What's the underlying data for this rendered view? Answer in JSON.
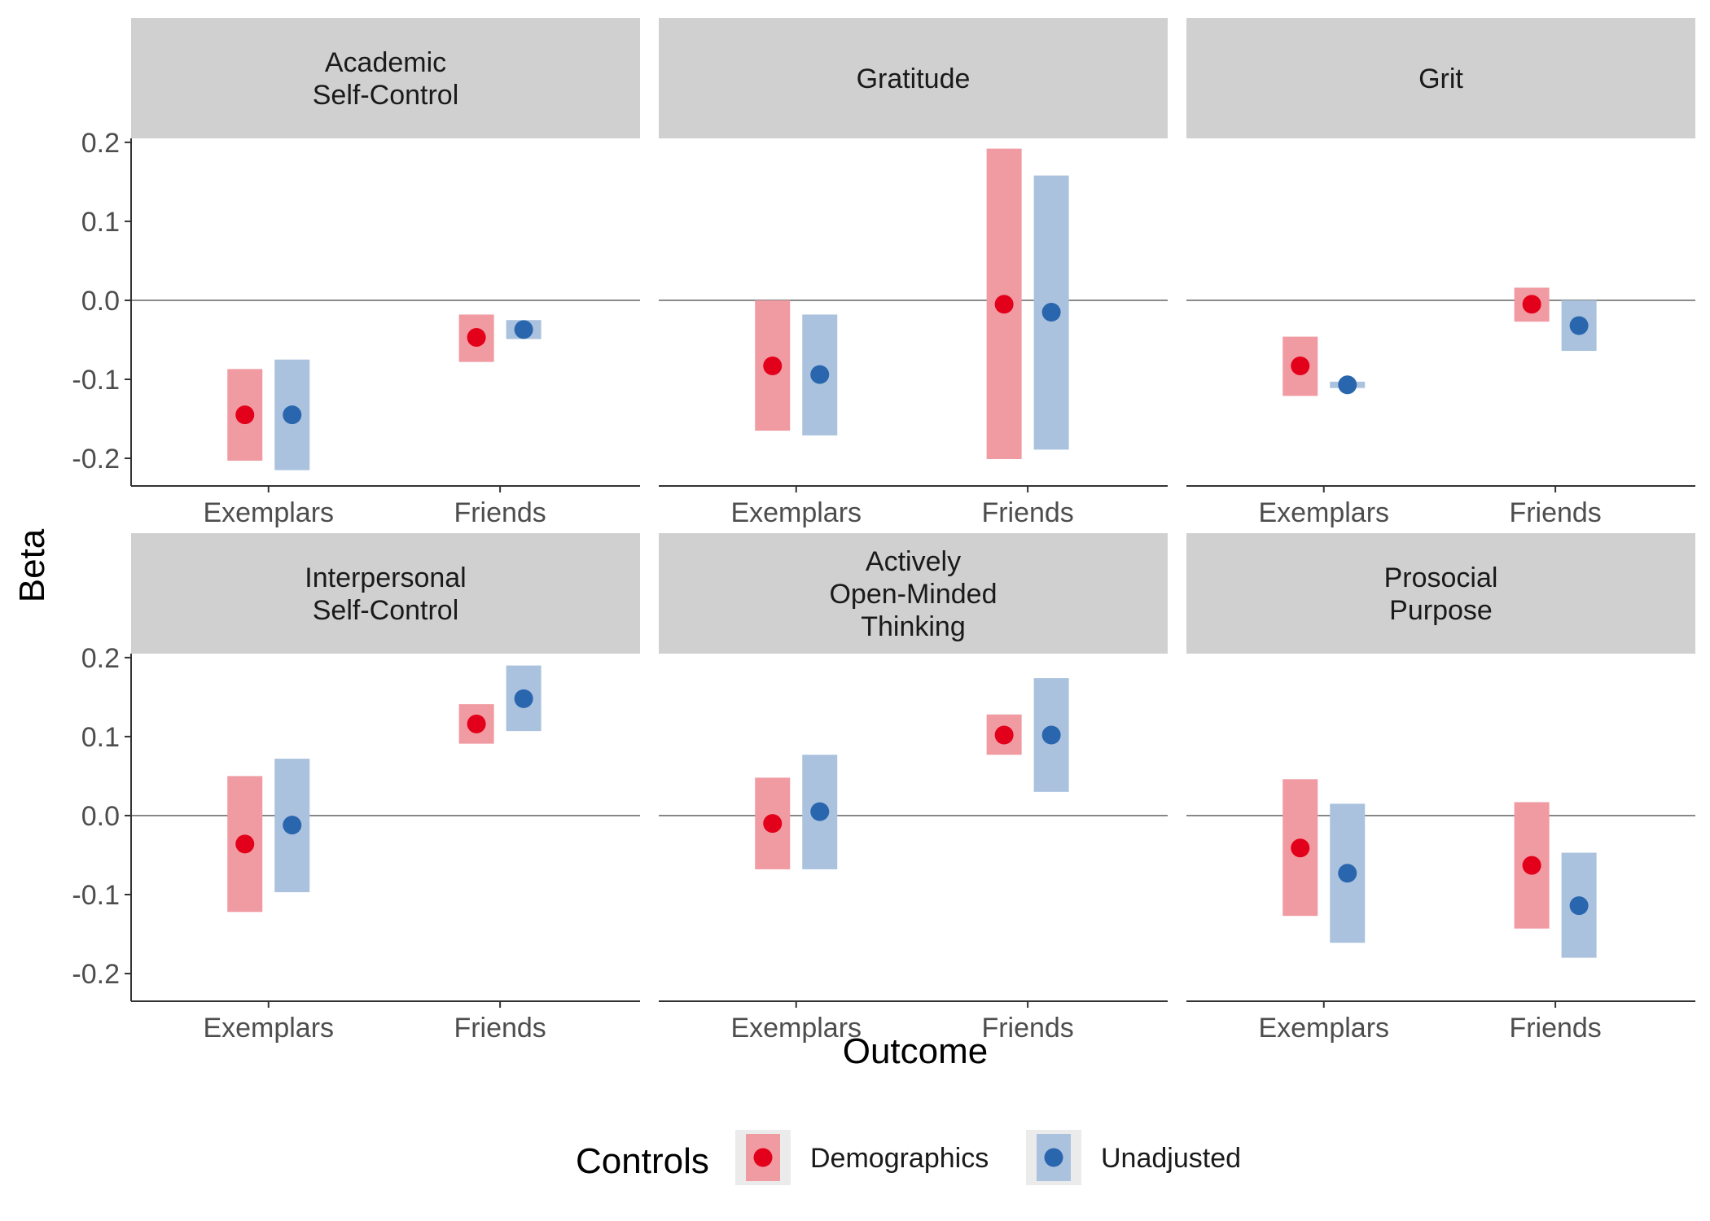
{
  "chart_data": {
    "type": "pointrange",
    "facet_layout": "3 columns x 2 rows",
    "xlabel": "Outcome",
    "ylabel": "Beta",
    "ylim": [
      -0.235,
      0.205
    ],
    "yticks": [
      -0.2,
      -0.1,
      0.0,
      0.1,
      0.2
    ],
    "ytick_labels": [
      "-0.2",
      "-0.1",
      "0.0",
      "0.1",
      "0.2"
    ],
    "reference_line_y": 0,
    "categories": [
      "Exemplars",
      "Friends"
    ],
    "legend": {
      "title": "Controls",
      "position": "bottom",
      "items": [
        {
          "name": "Demographics",
          "point_color": "#e3001b",
          "band_color": "#f09aa2"
        },
        {
          "name": "Unadjusted",
          "point_color": "#2a66ae",
          "band_color": "#aac2de"
        }
      ]
    },
    "series_names": [
      "Demographics",
      "Unadjusted"
    ],
    "panels": [
      {
        "title_lines": [
          "Academic",
          "Self-Control"
        ],
        "series": [
          {
            "name": "Demographics",
            "estimate": [
              -0.145,
              -0.047
            ],
            "low": [
              -0.203,
              -0.078
            ],
            "high": [
              -0.087,
              -0.018
            ]
          },
          {
            "name": "Unadjusted",
            "estimate": [
              -0.145,
              -0.037
            ],
            "low": [
              -0.215,
              -0.049
            ],
            "high": [
              -0.075,
              -0.025
            ]
          }
        ]
      },
      {
        "title_lines": [
          "Gratitude"
        ],
        "series": [
          {
            "name": "Demographics",
            "estimate": [
              -0.083,
              -0.005
            ],
            "low": [
              -0.165,
              -0.201
            ],
            "high": [
              0.0,
              0.192
            ]
          },
          {
            "name": "Unadjusted",
            "estimate": [
              -0.094,
              -0.015
            ],
            "low": [
              -0.171,
              -0.189
            ],
            "high": [
              -0.018,
              0.158
            ]
          }
        ]
      },
      {
        "title_lines": [
          "Grit"
        ],
        "series": [
          {
            "name": "Demographics",
            "estimate": [
              -0.083,
              -0.005
            ],
            "low": [
              -0.121,
              -0.027
            ],
            "high": [
              -0.046,
              0.016
            ]
          },
          {
            "name": "Unadjusted",
            "estimate": [
              -0.107,
              -0.032
            ],
            "low": [
              -0.111,
              -0.064
            ],
            "high": [
              -0.103,
              0.0
            ]
          }
        ]
      },
      {
        "title_lines": [
          "Interpersonal",
          "Self-Control"
        ],
        "series": [
          {
            "name": "Demographics",
            "estimate": [
              -0.036,
              0.116
            ],
            "low": [
              -0.122,
              0.091
            ],
            "high": [
              0.05,
              0.141
            ]
          },
          {
            "name": "Unadjusted",
            "estimate": [
              -0.012,
              0.148
            ],
            "low": [
              -0.097,
              0.107
            ],
            "high": [
              0.072,
              0.19
            ]
          }
        ]
      },
      {
        "title_lines": [
          "Actively",
          "Open-Minded",
          "Thinking"
        ],
        "series": [
          {
            "name": "Demographics",
            "estimate": [
              -0.01,
              0.102
            ],
            "low": [
              -0.068,
              0.077
            ],
            "high": [
              0.048,
              0.128
            ]
          },
          {
            "name": "Unadjusted",
            "estimate": [
              0.005,
              0.102
            ],
            "low": [
              -0.068,
              0.03
            ],
            "high": [
              0.077,
              0.174
            ]
          }
        ]
      },
      {
        "title_lines": [
          "Prosocial",
          "Purpose"
        ],
        "series": [
          {
            "name": "Demographics",
            "estimate": [
              -0.041,
              -0.063
            ],
            "low": [
              -0.127,
              -0.143
            ],
            "high": [
              0.046,
              0.017
            ]
          },
          {
            "name": "Unadjusted",
            "estimate": [
              -0.073,
              -0.114
            ],
            "low": [
              -0.161,
              -0.18
            ],
            "high": [
              0.015,
              -0.047
            ]
          }
        ]
      }
    ]
  }
}
